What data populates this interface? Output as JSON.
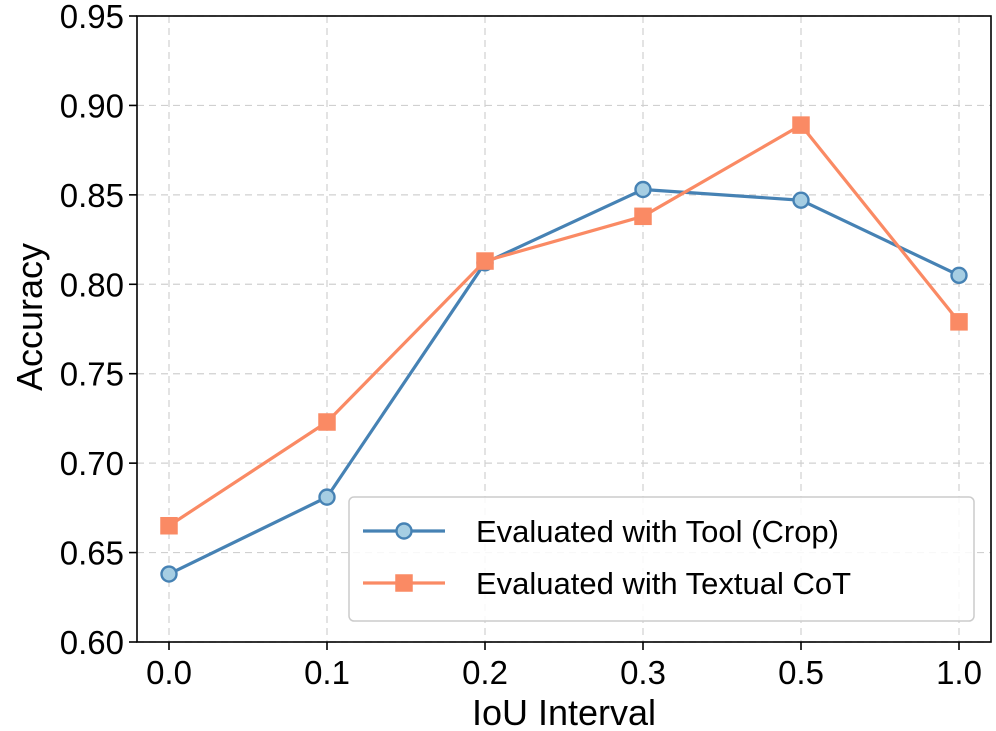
{
  "chart_data": {
    "type": "line",
    "title": "",
    "xlabel": "IoU Interval",
    "ylabel": "Accuracy",
    "categories": [
      "0.0",
      "0.1",
      "0.2",
      "0.3",
      "0.5",
      "1.0"
    ],
    "yticks": [
      "0.60",
      "0.65",
      "0.70",
      "0.75",
      "0.80",
      "0.85",
      "0.90",
      "0.95"
    ],
    "ylim": [
      0.6,
      0.95
    ],
    "grid": true,
    "legend_position": "bottom-right",
    "series": [
      {
        "name": "Evaluated with Tool (Crop)",
        "values": [
          0.638,
          0.681,
          0.812,
          0.853,
          0.847,
          0.805
        ],
        "color": "#4682b4",
        "marker_fill": "#a6cee3",
        "marker": "circle"
      },
      {
        "name": "Evaluated with Textual CoT",
        "values": [
          0.665,
          0.723,
          0.813,
          0.838,
          0.889,
          0.779
        ],
        "color": "#fa8a64",
        "marker_fill": "#fa8a64",
        "marker": "square"
      }
    ]
  }
}
